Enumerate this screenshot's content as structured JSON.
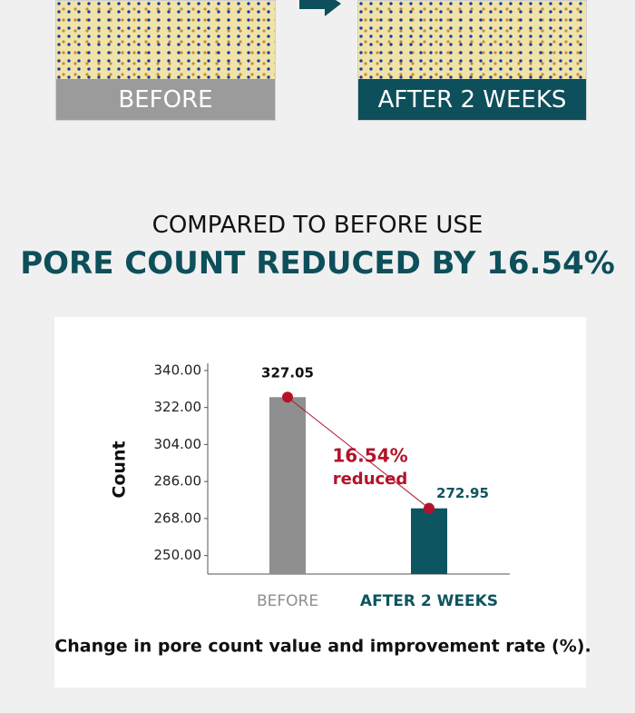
{
  "panels": [
    {
      "label": "BEFORE"
    },
    {
      "label": "AFTER 2 WEEKS"
    }
  ],
  "heading": {
    "line1": "COMPARED TO BEFORE USE",
    "line2": "PORE COUNT REDUCED BY 16.54%"
  },
  "chart_data": {
    "type": "bar",
    "y_label": "Count",
    "caption": "Change in pore count value and improvement rate (%).",
    "categories": [
      "BEFORE",
      "AFTER 2 WEEKS"
    ],
    "values": [
      327.05,
      272.95
    ],
    "colors": [
      "#8f8f8f",
      "#0d5560"
    ],
    "category_colors": [
      "#8f8f8f",
      "#0d5560"
    ],
    "point_color": "#b3132a",
    "annotation": [
      "16.54%",
      "reduced"
    ],
    "ylim": [
      241,
      343.5
    ],
    "yticks": [
      {
        "value": 250,
        "label": "250.00"
      },
      {
        "value": 268,
        "label": "268.00"
      },
      {
        "value": 286,
        "label": "286.00"
      },
      {
        "value": 304,
        "label": "304.00"
      },
      {
        "value": 322,
        "label": "322.00"
      },
      {
        "value": 340,
        "label": "340.00"
      }
    ]
  }
}
